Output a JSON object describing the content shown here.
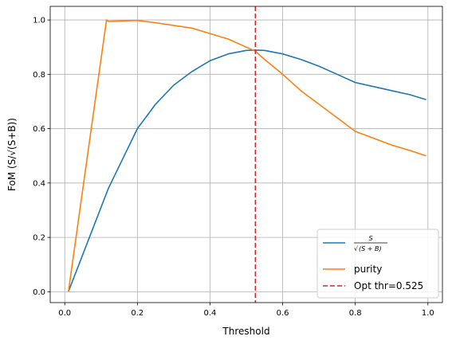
{
  "chart_data": {
    "type": "line",
    "title": "",
    "xlabel": "Threshold",
    "ylabel": "FoM (S/√(S+B))",
    "xlim": [
      -0.04,
      1.04
    ],
    "ylim": [
      -0.04,
      1.05
    ],
    "xticks": [
      0.0,
      0.2,
      0.4,
      0.6,
      0.8,
      1.0
    ],
    "xtick_labels": [
      "0.0",
      "0.2",
      "0.4",
      "0.6",
      "0.8",
      "1.0"
    ],
    "yticks": [
      0.0,
      0.2,
      0.4,
      0.6,
      0.8,
      1.0
    ],
    "ytick_labels": [
      "0.0",
      "0.2",
      "0.4",
      "0.6",
      "0.8",
      "1.0"
    ],
    "grid": true,
    "legend_position": "lower-right",
    "series": [
      {
        "name": "S / √(S+B)",
        "legend_numerator": "S",
        "legend_denominator": "(S + B)",
        "color": "#1f77b4",
        "x": [
          0.01,
          0.12,
          0.2,
          0.25,
          0.3,
          0.35,
          0.4,
          0.45,
          0.5,
          0.525,
          0.55,
          0.6,
          0.65,
          0.7,
          0.75,
          0.8,
          0.85,
          0.9,
          0.95,
          0.995
        ],
        "y": [
          0.0,
          0.38,
          0.6,
          0.69,
          0.76,
          0.81,
          0.85,
          0.875,
          0.888,
          0.889,
          0.888,
          0.875,
          0.855,
          0.83,
          0.8,
          0.77,
          0.755,
          0.74,
          0.725,
          0.707
        ]
      },
      {
        "name": "purity",
        "color": "#ff7f0e",
        "x": [
          0.01,
          0.115,
          0.12,
          0.2,
          0.25,
          0.3,
          0.35,
          0.4,
          0.45,
          0.5,
          0.525,
          0.55,
          0.6,
          0.65,
          0.7,
          0.75,
          0.8,
          0.85,
          0.9,
          0.95,
          0.995
        ],
        "y": [
          0.0,
          1.0,
          0.995,
          0.998,
          0.99,
          0.98,
          0.97,
          0.95,
          0.93,
          0.9,
          0.885,
          0.855,
          0.8,
          0.74,
          0.69,
          0.64,
          0.59,
          0.565,
          0.54,
          0.52,
          0.5
        ]
      }
    ],
    "vlines": [
      {
        "name": "Opt thr=0.525",
        "x": 0.525,
        "color": "#d62728",
        "style": "dashed"
      }
    ]
  }
}
